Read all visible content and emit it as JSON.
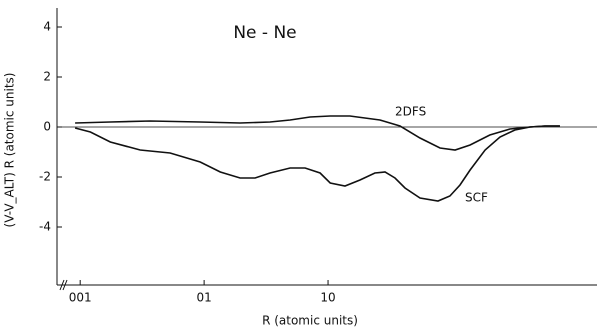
{
  "chart_data": {
    "type": "line",
    "title": "Ne - Ne",
    "xlabel": "R (atomic units)",
    "ylabel": "(V-V_ALT) R   (atomic units)",
    "xscale": "log",
    "xlim": [
      0.0065,
      148
    ],
    "ylim": [
      -6.32,
      4.76
    ],
    "xticks": [
      {
        "value": 0.01,
        "label": "001"
      },
      {
        "value": 0.1,
        "label": "01"
      },
      {
        "value": 1,
        "label": "10"
      }
    ],
    "yticks": [
      4,
      2,
      0,
      -2,
      -4
    ],
    "series": [
      {
        "name": "SCF",
        "color": "#111111",
        "x": [
          0.0091,
          0.0121,
          0.0175,
          0.0305,
          0.0532,
          0.093,
          0.135,
          0.195,
          0.258,
          0.34,
          0.494,
          0.653,
          0.862,
          1.04,
          1.37,
          1.81,
          2.39,
          2.88,
          3.47,
          4.18,
          5.52,
          7.71,
          9.63,
          11.6,
          14.0,
          18.5,
          24.4,
          32.2,
          42.6,
          56.2,
          74.3
        ],
        "values": [
          -0.04,
          -0.2,
          -0.6,
          -0.92,
          -1.04,
          -1.4,
          -1.8,
          -2.04,
          -2.04,
          -1.84,
          -1.64,
          -1.64,
          -1.84,
          -2.24,
          -2.36,
          -2.12,
          -1.84,
          -1.8,
          -2.04,
          -2.44,
          -2.84,
          -2.96,
          -2.76,
          -2.32,
          -1.72,
          -0.92,
          -0.4,
          -0.12,
          0,
          0.04,
          0.04
        ]
      },
      {
        "name": "2DFS",
        "color": "#111111",
        "x": [
          0.0091,
          0.0175,
          0.0367,
          0.093,
          0.195,
          0.34,
          0.494,
          0.716,
          1.04,
          1.5,
          2.62,
          3.81,
          5.52,
          8.0,
          10.6,
          14.0,
          20.2,
          29.4,
          42.6,
          56.2,
          74.3
        ],
        "values": [
          0.16,
          0.2,
          0.24,
          0.2,
          0.16,
          0.2,
          0.28,
          0.4,
          0.44,
          0.44,
          0.28,
          0.04,
          -0.44,
          -0.84,
          -0.92,
          -0.72,
          -0.32,
          -0.08,
          0,
          0.04,
          0.04
        ]
      }
    ]
  }
}
